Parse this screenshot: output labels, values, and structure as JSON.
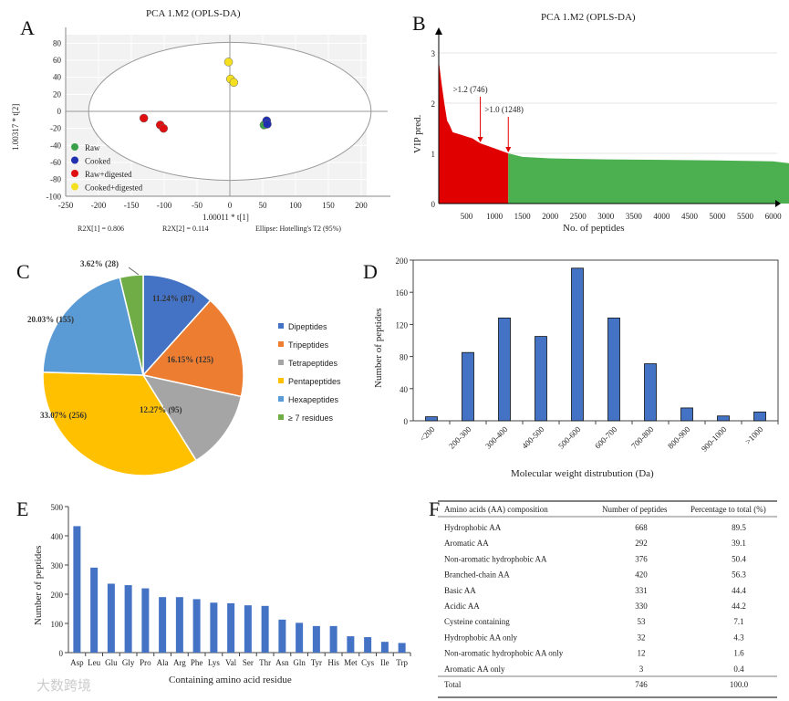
{
  "chart_data": [
    {
      "panel": "A",
      "type": "scatter",
      "title": "PCA 1.M2 (OPLS-DA)",
      "xlabel": "1.00011 * t[1]",
      "ylabel": "1.00317 * t[2]",
      "xlim": [
        -250,
        240
      ],
      "ylim": [
        -100,
        90
      ],
      "xticks": [
        -250,
        -200,
        -150,
        -100,
        -50,
        0,
        50,
        100,
        150,
        200
      ],
      "yticks": [
        80,
        60,
        40,
        20,
        0,
        -20,
        -40,
        -60,
        -80,
        -100
      ],
      "footer": [
        "R2X[1] = 0.806",
        "R2X[2] = 0.114",
        "Ellipse: Hotelling's T2 (95%)"
      ],
      "ellipse": {
        "rx": 215,
        "ry": 81
      },
      "series": [
        {
          "name": "Raw",
          "color": "#3aa04a",
          "points": [
            [
              52,
              -16
            ]
          ]
        },
        {
          "name": "Cooked",
          "color": "#1f2fb0",
          "points": [
            [
              56,
              -11
            ],
            [
              57,
              -15
            ]
          ]
        },
        {
          "name": "Raw+digested",
          "color": "#e01010",
          "points": [
            [
              -131,
              -8
            ],
            [
              -106,
              -16
            ],
            [
              -101,
              -20
            ]
          ]
        },
        {
          "name": "Cooked+digested",
          "color": "#f5e020",
          "points": [
            [
              -2,
              58
            ],
            [
              1,
              38
            ],
            [
              6,
              34
            ]
          ]
        }
      ],
      "legend": "bottom-left"
    },
    {
      "panel": "B",
      "type": "area",
      "title": "PCA 1.M2 (OPLS-DA)",
      "xlabel": "No. of peptides",
      "ylabel": "VIP pred.",
      "xlim": [
        0,
        6450
      ],
      "ylim": [
        0,
        3.3
      ],
      "xticks": [
        500,
        1000,
        1500,
        2000,
        2500,
        3000,
        3500,
        4000,
        4500,
        5000,
        5500,
        6000
      ],
      "yticks": [
        0,
        1,
        2,
        3
      ],
      "threshold": 1248,
      "colors": [
        "#e00000",
        "#4caf50"
      ],
      "x": [
        0,
        50,
        100,
        150,
        200,
        250,
        400,
        600,
        746,
        1000,
        1248,
        1500,
        2000,
        3000,
        4000,
        5000,
        6000,
        6300,
        6400,
        6420
      ],
      "y": [
        2.85,
        2.4,
        2.0,
        1.65,
        1.55,
        1.42,
        1.37,
        1.3,
        1.2,
        1.1,
        1.0,
        0.93,
        0.9,
        0.88,
        0.87,
        0.86,
        0.84,
        0.8,
        0.7,
        0
      ],
      "annotations": [
        {
          "text": ">1.2 (746)",
          "x": 746,
          "y": 1.2
        },
        {
          "text": ">1.0 (1248)",
          "x": 1248,
          "y": 1.0
        }
      ]
    },
    {
      "panel": "C",
      "type": "pie",
      "slices": [
        {
          "name": "Dipeptides",
          "value": 87,
          "label": "11.24% (87)",
          "color": "#4472c4"
        },
        {
          "name": "Tripeptides",
          "value": 125,
          "label": "16.15% (125)",
          "color": "#ed7d31"
        },
        {
          "name": "Tetrapeptides",
          "value": 95,
          "label": "12.27% (95)",
          "color": "#a5a5a5"
        },
        {
          "name": "Pentapeptides",
          "value": 256,
          "label": "33.07% (256)",
          "color": "#ffc000"
        },
        {
          "name": "Hexapeptides",
          "value": 155,
          "label": "20.03% (155)",
          "color": "#5b9bd5"
        },
        {
          "name": "≥ 7 residues",
          "value": 28,
          "label": "3.62% (28)",
          "color": "#70ad47"
        }
      ],
      "legend": "right"
    },
    {
      "panel": "D",
      "type": "bar",
      "xlabel": "Molecular weight distrubution (Da)",
      "ylabel": "Number of peptides",
      "ylim": [
        0,
        200
      ],
      "yticks": [
        0,
        40,
        80,
        120,
        160,
        200
      ],
      "categories": [
        "<200",
        "200-300",
        "300-400",
        "400-500",
        "500-600",
        "600-700",
        "700-800",
        "800-900",
        "900-1000",
        ">1000"
      ],
      "values": [
        5,
        85,
        128,
        105,
        190,
        128,
        71,
        16,
        6,
        11
      ],
      "color": "#4472c4"
    },
    {
      "panel": "E",
      "type": "bar",
      "xlabel": "Containing amino acid residue",
      "ylabel": "Number of peptides",
      "ylim": [
        0,
        500
      ],
      "yticks": [
        0,
        100,
        200,
        300,
        400,
        500
      ],
      "categories": [
        "Asp",
        "Leu",
        "Glu",
        "Gly",
        "Pro",
        "Ala",
        "Arg",
        "Phe",
        "Lys",
        "Val",
        "Ser",
        "Thr",
        "Asn",
        "Gln",
        "Tyr",
        "His",
        "Met",
        "Cys",
        "Ile",
        "Trp"
      ],
      "values": [
        433,
        291,
        236,
        231,
        220,
        190,
        190,
        183,
        171,
        169,
        162,
        160,
        113,
        102,
        91,
        91,
        56,
        53,
        37,
        33
      ],
      "color": "#4472c4"
    },
    {
      "panel": "F",
      "type": "table",
      "columns": [
        "Amino acids (AA) composition",
        "Number of peptides",
        "Percentage to total (%)"
      ],
      "rows": [
        [
          "Hydrophobic AA",
          "668",
          "89.5"
        ],
        [
          "Aromatic AA",
          "292",
          "39.1"
        ],
        [
          "Non-aromatic hydrophobic AA",
          "376",
          "50.4"
        ],
        [
          "Branched-chain AA",
          "420",
          "56.3"
        ],
        [
          "Basic AA",
          "331",
          "44.4"
        ],
        [
          "Acidic AA",
          "330",
          "44.2"
        ],
        [
          "Cysteine containing",
          "53",
          "7.1"
        ],
        [
          "Hydrophobic AA only",
          "32",
          "4.3"
        ],
        [
          "Non-aromatic hydrophobic AA only",
          "12",
          "1.6"
        ],
        [
          "Aromatic AA only",
          "3",
          "0.4"
        ],
        [
          "Total",
          "746",
          "100.0"
        ]
      ]
    }
  ],
  "panel_labels": [
    "A",
    "B",
    "C",
    "D",
    "E",
    "F"
  ],
  "watermark": "大数跨境"
}
